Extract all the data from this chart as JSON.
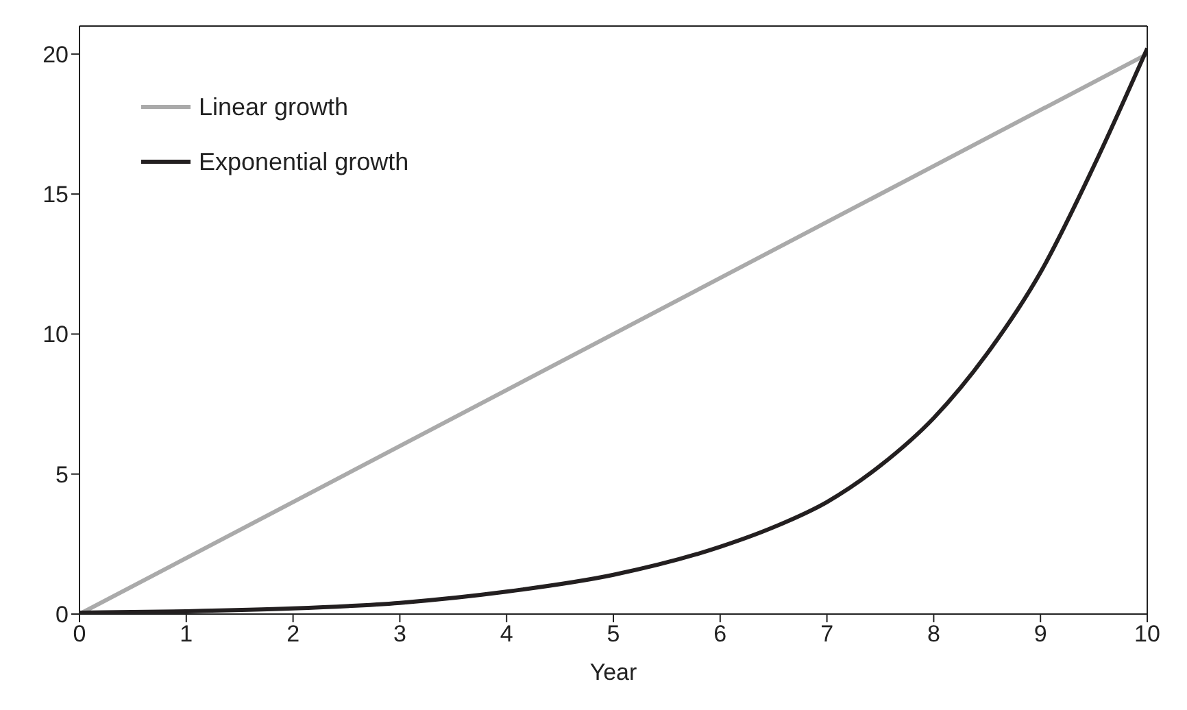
{
  "chart_data": {
    "type": "line",
    "xlabel": "Year",
    "xlim": [
      0,
      10
    ],
    "xticks": [
      0,
      1,
      2,
      3,
      4,
      5,
      6,
      7,
      8,
      9,
      10
    ],
    "ylim": [
      0,
      21
    ],
    "yticks": [
      0,
      5,
      10,
      15,
      20
    ],
    "legend": "top left",
    "marker": "none",
    "line_style": "solid",
    "series": [
      {
        "name": "Linear growth",
        "color": "#aaaaaa",
        "x": [
          0,
          10
        ],
        "values": [
          0,
          20
        ]
      },
      {
        "name": "Exponential growth",
        "color": "#231f20",
        "x": [
          0,
          1,
          2,
          3,
          4,
          5,
          6,
          6.5,
          7,
          7.5,
          8,
          8.5,
          9,
          9.5,
          10
        ],
        "values": [
          0.05,
          0.1,
          0.2,
          0.4,
          0.8,
          1.4,
          2.4,
          3.1,
          4.0,
          5.3,
          7.0,
          9.3,
          12.2,
          16,
          20.2
        ]
      }
    ]
  }
}
